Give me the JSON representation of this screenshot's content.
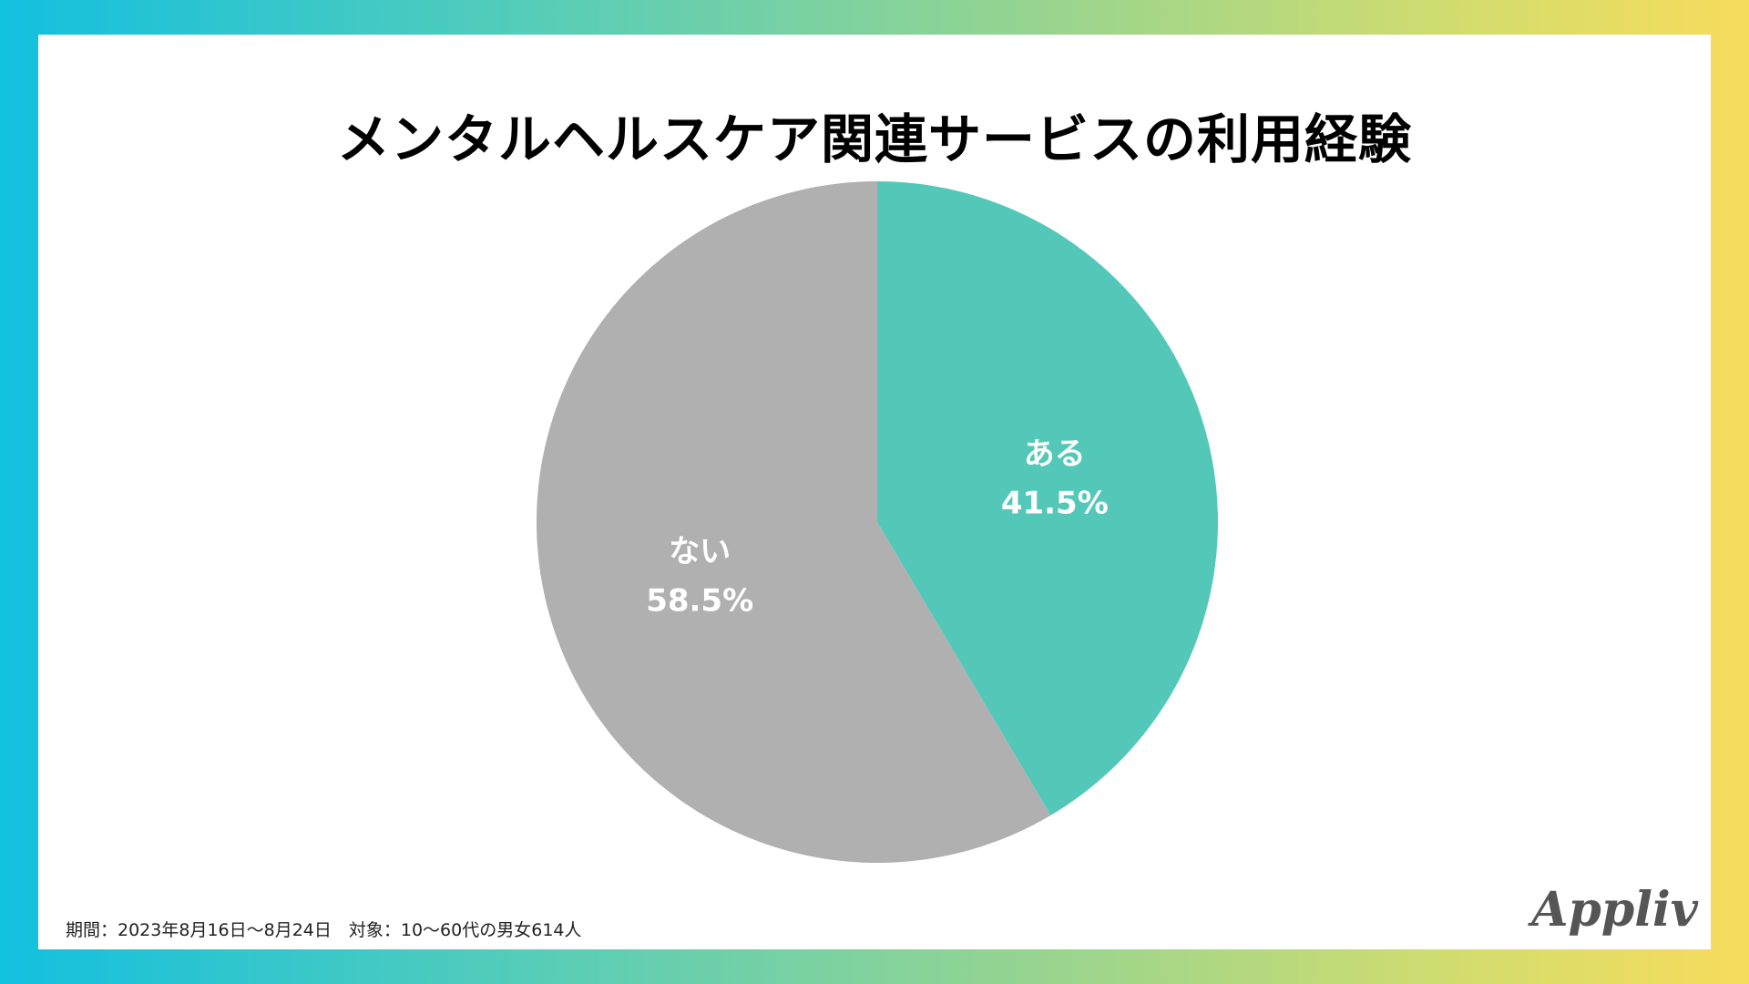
{
  "title": "メンタルヘルスケア関連サービスの利用経験",
  "note": "期間：2023年8月16日～8月24日　対象：10～60代の男女614人",
  "brand": "Appliv",
  "colors": {
    "background_left": "#12c0df",
    "background_right": "#f7dc5c",
    "panel": "#ffffff",
    "slice_yes": "#53c8b9",
    "slice_no": "#b0b0b0",
    "label": "#ffffff"
  },
  "chart_data": {
    "type": "pie",
    "title": "メンタルヘルスケア関連サービスの利用経験",
    "start": "12 o'clock",
    "direction": "clockwise",
    "slices": [
      {
        "label": "ある",
        "value": 41.5,
        "value_label": "41.5%",
        "color": "#53c8b9"
      },
      {
        "label": "ない",
        "value": 58.5,
        "value_label": "58.5%",
        "color": "#b0b0b0"
      }
    ]
  }
}
